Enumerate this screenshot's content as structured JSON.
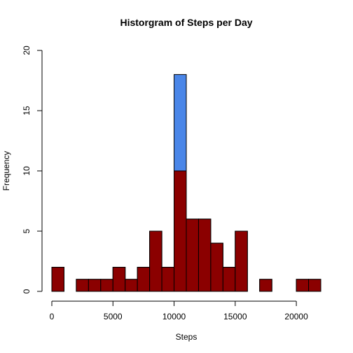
{
  "chart_data": {
    "type": "bar",
    "title": "Historgram of Steps per Day",
    "xlabel": "Steps",
    "ylabel": "Frequency",
    "xlim": [
      0,
      22000
    ],
    "ylim": [
      0,
      20
    ],
    "bin_width": 1000,
    "x_ticks": [
      0,
      5000,
      10000,
      15000,
      20000
    ],
    "y_ticks": [
      0,
      5,
      10,
      15,
      20
    ],
    "colors": {
      "series_a": "#4A86E8",
      "series_b": "#8B0000"
    },
    "series": [
      {
        "color": "#4A86E8",
        "bins": [
          {
            "x0": 0,
            "x1": 1000,
            "count": 2
          },
          {
            "x0": 1000,
            "x1": 2000,
            "count": 0
          },
          {
            "x0": 2000,
            "x1": 3000,
            "count": 1
          },
          {
            "x0": 3000,
            "x1": 4000,
            "count": 1
          },
          {
            "x0": 4000,
            "x1": 5000,
            "count": 1
          },
          {
            "x0": 5000,
            "x1": 6000,
            "count": 2
          },
          {
            "x0": 6000,
            "x1": 7000,
            "count": 1
          },
          {
            "x0": 7000,
            "x1": 8000,
            "count": 2
          },
          {
            "x0": 8000,
            "x1": 9000,
            "count": 5
          },
          {
            "x0": 9000,
            "x1": 10000,
            "count": 2
          },
          {
            "x0": 10000,
            "x1": 11000,
            "count": 18
          },
          {
            "x0": 11000,
            "x1": 12000,
            "count": 6
          },
          {
            "x0": 12000,
            "x1": 13000,
            "count": 6
          },
          {
            "x0": 13000,
            "x1": 14000,
            "count": 4
          },
          {
            "x0": 14000,
            "x1": 15000,
            "count": 2
          },
          {
            "x0": 15000,
            "x1": 16000,
            "count": 5
          },
          {
            "x0": 16000,
            "x1": 17000,
            "count": 0
          },
          {
            "x0": 17000,
            "x1": 18000,
            "count": 1
          },
          {
            "x0": 18000,
            "x1": 19000,
            "count": 0
          },
          {
            "x0": 19000,
            "x1": 20000,
            "count": 0
          },
          {
            "x0": 20000,
            "x1": 21000,
            "count": 1
          },
          {
            "x0": 21000,
            "x1": 22000,
            "count": 1
          }
        ]
      },
      {
        "color": "#8B0000",
        "bins": [
          {
            "x0": 0,
            "x1": 1000,
            "count": 2
          },
          {
            "x0": 1000,
            "x1": 2000,
            "count": 0
          },
          {
            "x0": 2000,
            "x1": 3000,
            "count": 1
          },
          {
            "x0": 3000,
            "x1": 4000,
            "count": 1
          },
          {
            "x0": 4000,
            "x1": 5000,
            "count": 1
          },
          {
            "x0": 5000,
            "x1": 6000,
            "count": 2
          },
          {
            "x0": 6000,
            "x1": 7000,
            "count": 1
          },
          {
            "x0": 7000,
            "x1": 8000,
            "count": 2
          },
          {
            "x0": 8000,
            "x1": 9000,
            "count": 5
          },
          {
            "x0": 9000,
            "x1": 10000,
            "count": 2
          },
          {
            "x0": 10000,
            "x1": 11000,
            "count": 10
          },
          {
            "x0": 11000,
            "x1": 12000,
            "count": 6
          },
          {
            "x0": 12000,
            "x1": 13000,
            "count": 6
          },
          {
            "x0": 13000,
            "x1": 14000,
            "count": 4
          },
          {
            "x0": 14000,
            "x1": 15000,
            "count": 2
          },
          {
            "x0": 15000,
            "x1": 16000,
            "count": 5
          },
          {
            "x0": 16000,
            "x1": 17000,
            "count": 0
          },
          {
            "x0": 17000,
            "x1": 18000,
            "count": 1
          },
          {
            "x0": 18000,
            "x1": 19000,
            "count": 0
          },
          {
            "x0": 19000,
            "x1": 20000,
            "count": 0
          },
          {
            "x0": 20000,
            "x1": 21000,
            "count": 1
          },
          {
            "x0": 21000,
            "x1": 22000,
            "count": 1
          }
        ]
      }
    ]
  }
}
